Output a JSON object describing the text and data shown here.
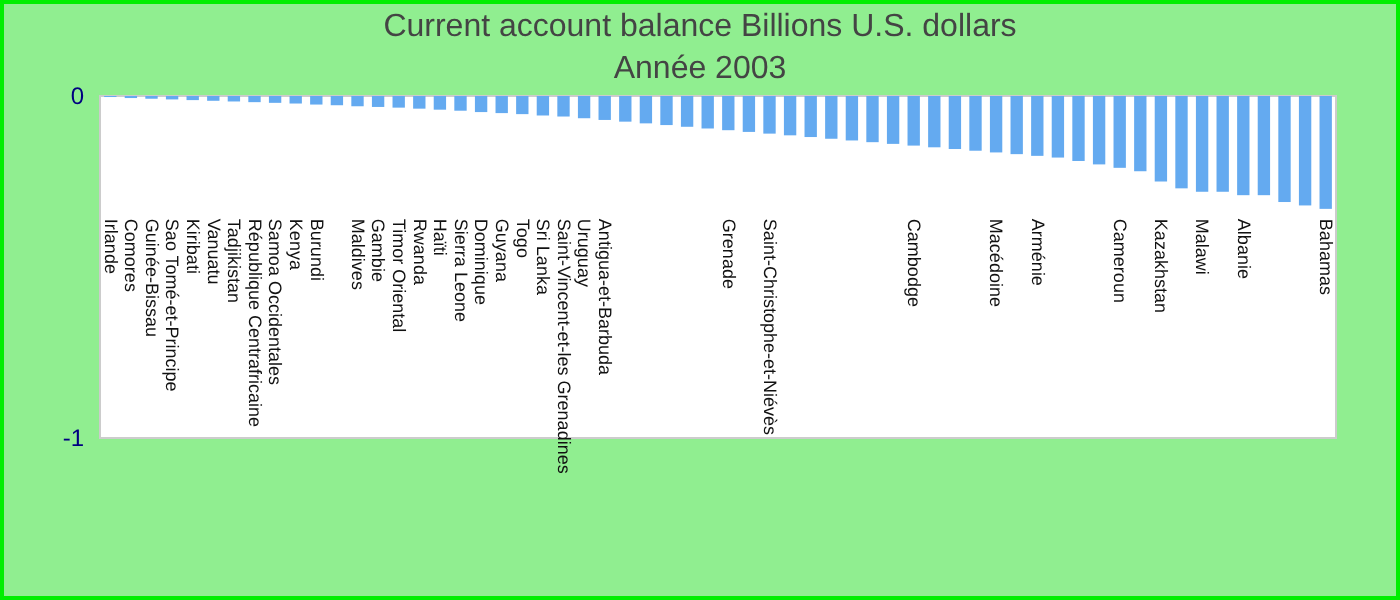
{
  "chart_data": {
    "type": "bar",
    "title": "Current account balance Billions U.S. dollars",
    "subtitle": "Année 2003",
    "categories": [
      "Irlande",
      "Comores",
      "Guinée-Bissau",
      "Sao Tomé-et-Principe",
      "Kiribati",
      "Vanuatu",
      "Tadjikistan",
      "République Centrafricaine",
      "Samoa Occidentales",
      "Kenya",
      "Burundi",
      null,
      "Maldives",
      "Gambie",
      "Timor Oriental",
      "Rwanda",
      "Haïti",
      "Sierra Leone",
      "Dominique",
      "Guyana",
      "Togo",
      "Sri Lanka",
      "Saint-Vincent-et-les Grenadines",
      "Uruguay",
      "Antigua-et-Barbuda",
      null,
      null,
      null,
      null,
      null,
      "Grenade",
      null,
      "Saint-Christophe-et-Niévès",
      null,
      null,
      null,
      null,
      null,
      null,
      "Cambodge",
      null,
      null,
      null,
      "Macédoine",
      null,
      "Arménie",
      null,
      null,
      null,
      "Cameroun",
      null,
      "Kazakhstan",
      null,
      "Malawi",
      null,
      "Albanie",
      null,
      null,
      null,
      "Bahamas"
    ],
    "values": [
      -0.003,
      -0.006,
      -0.008,
      -0.01,
      -0.012,
      -0.014,
      -0.016,
      -0.018,
      -0.02,
      -0.022,
      -0.025,
      -0.027,
      -0.03,
      -0.032,
      -0.034,
      -0.037,
      -0.04,
      -0.043,
      -0.047,
      -0.05,
      -0.053,
      -0.057,
      -0.06,
      -0.065,
      -0.07,
      -0.075,
      -0.08,
      -0.085,
      -0.09,
      -0.095,
      -0.1,
      -0.105,
      -0.11,
      -0.115,
      -0.12,
      -0.125,
      -0.13,
      -0.135,
      -0.14,
      -0.145,
      -0.15,
      -0.155,
      -0.16,
      -0.165,
      -0.17,
      -0.175,
      -0.18,
      -0.19,
      -0.2,
      -0.21,
      -0.22,
      -0.25,
      -0.27,
      -0.28,
      -0.28,
      -0.29,
      -0.29,
      -0.31,
      -0.32,
      -0.33
    ],
    "color": "#64aaf0",
    "ylim": [
      -1,
      0
    ],
    "yticks": [
      0,
      -1
    ]
  }
}
